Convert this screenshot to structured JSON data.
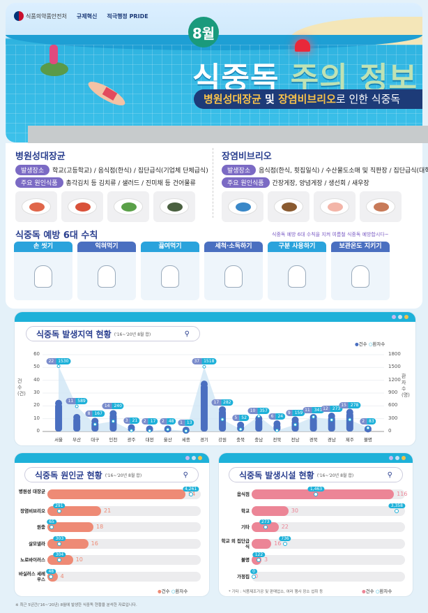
{
  "header": {
    "org": "식품의약품안전처",
    "logo2": "규제혁신",
    "logo3": "적극행정 PRIDE",
    "month": "8월",
    "title_a": "식중독",
    "title_b": "주의 정보",
    "subtitle_hl1": "병원성대장균",
    "subtitle_and": " 및 ",
    "subtitle_hl2": "장염비브리오",
    "subtitle_rest": "로 인한 식중독"
  },
  "bacteria": [
    {
      "name": "병원성대장균",
      "place_label": "발생장소",
      "place": "학교(고등학교) / 음식점(한식) / 집단급식(기업체 단체급식)",
      "food_label": "주요 원인식품",
      "food": "총각김치 등 김치류 / 샐러드 / 진미채 등 건어물류",
      "images": [
        "school-meal",
        "kimchi",
        "salad",
        "dried-squid"
      ]
    },
    {
      "name": "장염비브리오",
      "place_label": "발생장소",
      "place": "음식점(한식, 횟집일식) / 수산물도소매 및 직판장 / 집단급식(대학)",
      "food_label": "주요 원인식품",
      "food": "간장게장, 양념게장 / 생선회 / 새우장",
      "images": [
        "fish-market",
        "crab",
        "sashimi",
        "shrimp"
      ]
    }
  ],
  "rules": {
    "title": "식중독 예방 6대 수칙",
    "note": "식중독 예방 6대 수칙을 지켜 여름철 식중독 예방합시다~",
    "items": [
      {
        "label": "손 씻기",
        "color": "#2aa3dc"
      },
      {
        "label": "익혀먹기",
        "color": "#4a6fc0"
      },
      {
        "label": "끓여먹기",
        "color": "#2aa3dc"
      },
      {
        "label": "세척·소독하기",
        "color": "#4a6fc0"
      },
      {
        "label": "구분 사용하기",
        "color": "#2aa3dc"
      },
      {
        "label": "보관온도 지키기",
        "color": "#4a6fc0"
      }
    ]
  },
  "chart_data": [
    {
      "type": "bar+area",
      "title": "식중독 발생지역 현황",
      "subtitle": "('16~'20년 8월 합)",
      "ylabel": "건수(건)",
      "y2label": "환자수(명)",
      "ylim": [
        0,
        60
      ],
      "y2lim": [
        0,
        1800
      ],
      "yticks": [
        0,
        10,
        20,
        30,
        40,
        50,
        60
      ],
      "y2ticks": [
        0,
        300,
        600,
        900,
        1200,
        1500,
        1800
      ],
      "legend": [
        "건수",
        "환자수"
      ],
      "legend_position": "top-right",
      "categories": [
        "서울",
        "부산",
        "대구",
        "인천",
        "광주",
        "대전",
        "울산",
        "세종",
        "경기",
        "강원",
        "충북",
        "충남",
        "전북",
        "전남",
        "경북",
        "경남",
        "제주",
        "불명"
      ],
      "series": [
        {
          "name": "건수",
          "values": [
            22,
            11,
            8,
            14,
            3,
            2,
            2,
            1,
            37,
            17,
            5,
            10,
            6,
            9,
            11,
            12,
            15,
            2
          ]
        },
        {
          "name": "환자수",
          "values": [
            1530,
            589,
            167,
            240,
            21,
            17,
            48,
            13,
            1518,
            282,
            52,
            357,
            24,
            159,
            341,
            273,
            278,
            83
          ]
        }
      ],
      "colors": {
        "count": "#4a6fc0",
        "patients": "#1eb1d9",
        "area": "#cfe6f5"
      }
    },
    {
      "type": "hbar",
      "title": "식중독 원인균 현황",
      "subtitle": "('16~'20년 8월 합)",
      "legend": [
        "건수",
        "환자수"
      ],
      "legend_position": "bottom-right",
      "xlim": [
        0,
        60
      ],
      "x2lim": [
        0,
        4500
      ],
      "categories": [
        "병원성 대장균",
        "장염비브리오",
        "원충",
        "살모넬라",
        "노로바이러스",
        "바실러스 세레우스"
      ],
      "series": [
        {
          "name": "건수",
          "values": [
            54,
            21,
            18,
            16,
            10,
            4
          ]
        },
        {
          "name": "환자수",
          "values": [
            4261,
            291,
            65,
            303,
            304,
            48
          ]
        }
      ],
      "patient_labels": [
        "4,261",
        "291",
        "65",
        "303",
        "304",
        "48"
      ],
      "color": "#ee8a75"
    },
    {
      "type": "hbar",
      "title": "식중독 발생시설 현황",
      "subtitle": "('16~'20년 8월 합)",
      "legend": [
        "건수",
        "환자수"
      ],
      "legend_position": "bottom-right",
      "xlim": [
        0,
        125
      ],
      "x2lim": [
        0,
        3500
      ],
      "categories": [
        "음식점",
        "학교",
        "기타",
        "학교 외 집단급식",
        "불명",
        "가정집"
      ],
      "series": [
        {
          "name": "건수",
          "values": [
            116,
            30,
            22,
            16,
            3,
            0
          ]
        },
        {
          "name": "환자수",
          "values": [
            1463,
            3358,
            273,
            736,
            122,
            0
          ]
        }
      ],
      "patient_labels": [
        "1,463",
        "3,358",
        "273",
        "736",
        "122",
        "0"
      ],
      "color": "#ec8596",
      "note": "* 기타 : 식품제조가공 및 판매업소, 여러 행사 장소 섭취 등"
    }
  ],
  "footnote": "※ 최근 5년간('16~'20년) 8월에 발생한 식중독 현황을 분석한 자료입니다."
}
